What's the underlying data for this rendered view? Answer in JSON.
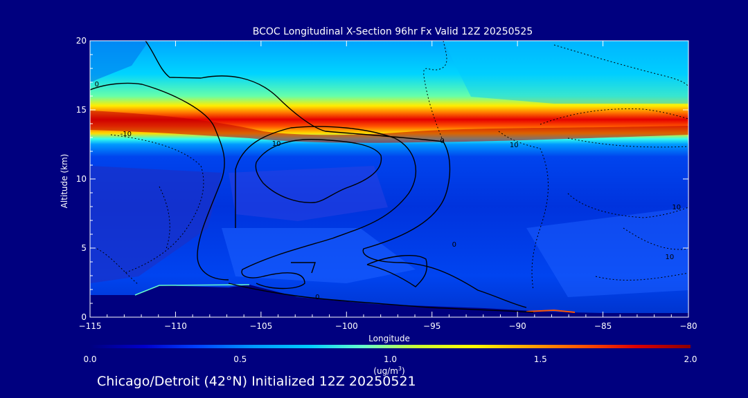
{
  "chart_data": {
    "type": "heatmap",
    "title": "BCOC Longitudinal X-Section 96hr  Fx Valid 12Z 20250525",
    "xlabel": "Longitude",
    "ylabel": "Altitude (km)",
    "xlim": [
      -115,
      -80
    ],
    "ylim": [
      0,
      20
    ],
    "x_ticks": [
      -115,
      -110,
      -105,
      -100,
      -95,
      -90,
      -85,
      -80
    ],
    "y_ticks": [
      0,
      5,
      10,
      15,
      20
    ],
    "colorbar": {
      "min": 0.0,
      "max": 2.0,
      "ticks": [
        "0.0",
        "0.5",
        "1.0",
        "1.5",
        "2.0"
      ],
      "units": "(ug/m",
      "units_sup": "3",
      "units_close": ")",
      "colors": [
        "#00007f",
        "#0000cc",
        "#0044ff",
        "#0099ff",
        "#00ccff",
        "#66ffcc",
        "#ccff33",
        "#ffff00",
        "#ffaa00",
        "#ff5500",
        "#dd0000",
        "#8b0000"
      ]
    },
    "contour_labels": [
      {
        "text": "0",
        "lon": -114.6,
        "alt": 16.7
      },
      {
        "text": "-10",
        "lon": -112.9,
        "alt": 13.1
      },
      {
        "text": "10",
        "lon": -104.1,
        "alt": 12.4
      },
      {
        "text": "0",
        "lon": -94.4,
        "alt": 12.6
      },
      {
        "text": "10",
        "lon": -90.2,
        "alt": 12.3
      },
      {
        "text": "0",
        "lon": -93.7,
        "alt": 5.1
      },
      {
        "text": "0",
        "lon": -101.7,
        "alt": 1.3
      },
      {
        "text": "10",
        "lon": -80.7,
        "alt": 7.8
      },
      {
        "text": "10",
        "lon": -81.1,
        "alt": 4.2
      }
    ]
  },
  "footer": "Chicago/Detroit (42°N) Initialized 12Z 20250521"
}
